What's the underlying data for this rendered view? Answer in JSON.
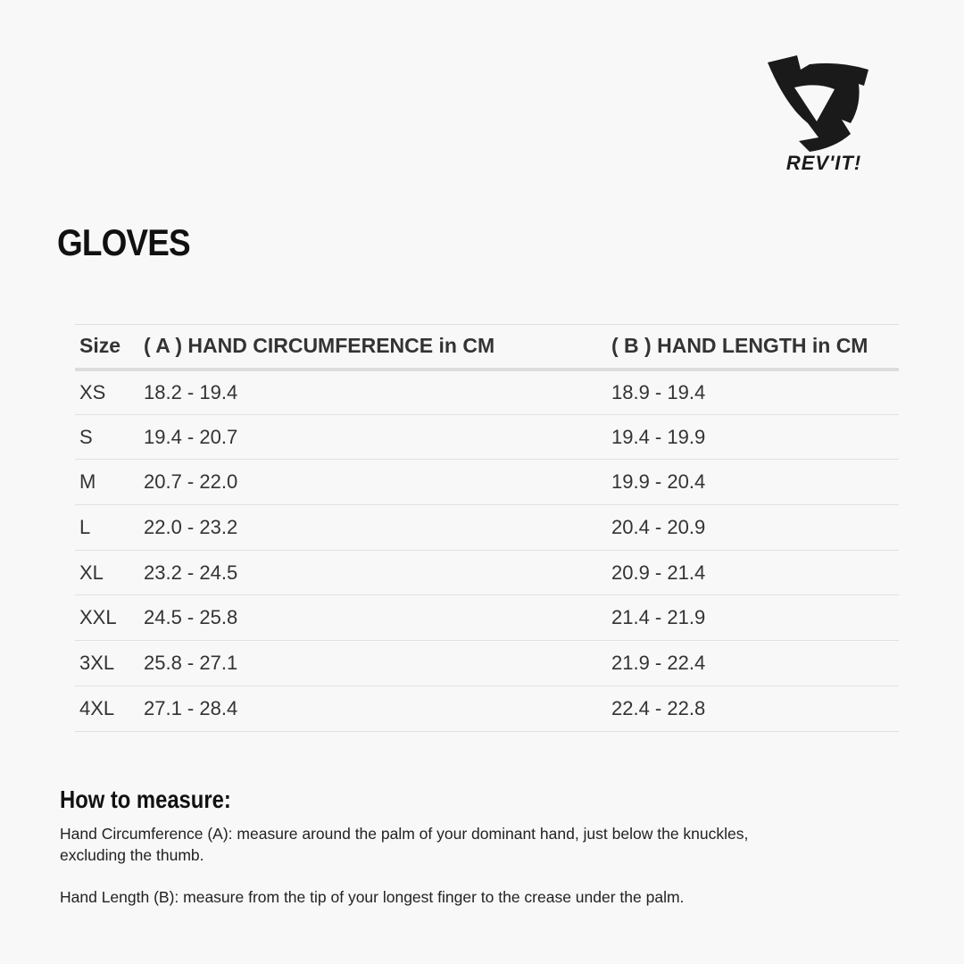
{
  "brand": {
    "name": "REV'IT!"
  },
  "title": "GLOVES",
  "table": {
    "headers": [
      "Size",
      "( A ) HAND CIRCUMFERENCE in CM",
      "( B ) HAND LENGTH in CM"
    ],
    "rows": [
      [
        "XS",
        "18.2 - 19.4",
        "18.9 - 19.4"
      ],
      [
        "S",
        "19.4 - 20.7",
        "19.4 - 19.9"
      ],
      [
        "M",
        "20.7 - 22.0",
        "19.9 - 20.4"
      ],
      [
        "L",
        "22.0 - 23.2",
        "20.4 - 20.9"
      ],
      [
        "XL",
        "23.2 - 24.5",
        "20.9 - 21.4"
      ],
      [
        "XXL",
        "24.5 - 25.8",
        "21.4 - 21.9"
      ],
      [
        "3XL",
        "25.8 - 27.1",
        "21.9 - 22.4"
      ],
      [
        "4XL",
        "27.1 - 28.4",
        "22.4 - 22.8"
      ]
    ]
  },
  "how_to": {
    "heading": "How to measure:",
    "circumference": "Hand Circumference (A): measure around the palm of your dominant hand, just below the knuckles, excluding the thumb.",
    "length": "Hand Length (B): measure from the tip of your longest finger to the crease under the palm."
  }
}
